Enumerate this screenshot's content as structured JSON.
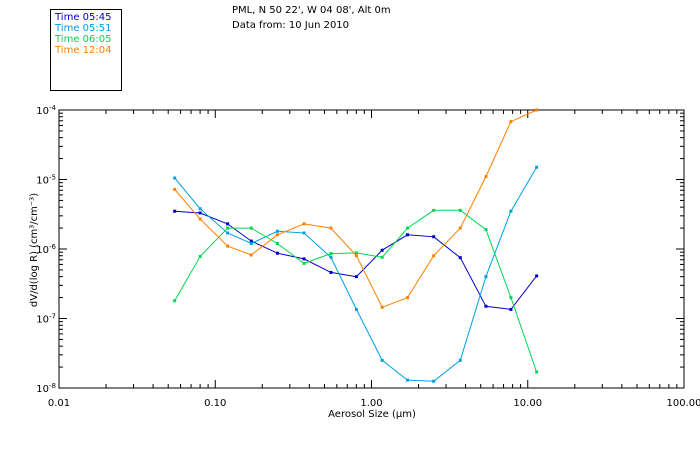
{
  "header": {
    "line1": "PML, N 50 22', W 04 08', Alt 0m",
    "line2": "Data from: 10 Jun 2010"
  },
  "chart_data": {
    "type": "line",
    "xlabel": "Aerosol Size (μm)",
    "ylabel": "dV/d(log R) (cm³/cm⁻³)",
    "xscale": "log",
    "yscale": "log",
    "xlim": [
      0.01,
      100
    ],
    "ylim": [
      1e-08,
      0.0001
    ],
    "xticks": [
      {
        "value": 0.01,
        "label": "0.01"
      },
      {
        "value": 0.1,
        "label": "0.10"
      },
      {
        "value": 1,
        "label": "1.00"
      },
      {
        "value": 10,
        "label": "10.00"
      },
      {
        "value": 100,
        "label": "100.00"
      }
    ],
    "yticks": [
      {
        "value": 1e-08,
        "base": "10",
        "exp": "-8"
      },
      {
        "value": 1e-07,
        "base": "10",
        "exp": "-7"
      },
      {
        "value": 1e-06,
        "base": "10",
        "exp": "-6"
      },
      {
        "value": 1e-05,
        "base": "10",
        "exp": "-5"
      },
      {
        "value": 0.0001,
        "base": "10",
        "exp": "-4"
      }
    ],
    "grid": false,
    "legend_position": "top-left",
    "x": [
      0.055,
      0.08,
      0.12,
      0.17,
      0.25,
      0.37,
      0.55,
      0.8,
      1.17,
      1.7,
      2.5,
      3.7,
      5.4,
      7.8,
      11.4
    ],
    "series": [
      {
        "name": "Time 05:45",
        "color": "#0000c8",
        "values": [
          3.5e-06,
          3.3e-06,
          2.3e-06,
          1.3e-06,
          8.7e-07,
          7.2e-07,
          4.6e-07,
          4e-07,
          9.6e-07,
          1.6e-06,
          1.5e-06,
          7.5e-07,
          1.5e-07,
          1.35e-07,
          4.1e-07
        ]
      },
      {
        "name": "Time 05:51",
        "color": "#00a0e0",
        "values": [
          1.05e-05,
          3.8e-06,
          1.7e-06,
          1.2e-06,
          1.8e-06,
          1.7e-06,
          7.6e-07,
          1.35e-07,
          2.5e-08,
          1.3e-08,
          1.25e-08,
          2.5e-08,
          4e-07,
          3.5e-06,
          1.5e-05
        ]
      },
      {
        "name": "Time 06:05",
        "color": "#00d850",
        "values": [
          1.8e-07,
          7.8e-07,
          2e-06,
          2e-06,
          1.2e-06,
          6.2e-07,
          8.6e-07,
          8.8e-07,
          7.6e-07,
          2e-06,
          3.6e-06,
          3.6e-06,
          1.9e-06,
          2e-07,
          1.7e-08
        ]
      },
      {
        "name": "Time 12:04",
        "color": "#ff8000",
        "values": [
          7.2e-06,
          2.7e-06,
          1.1e-06,
          8.2e-07,
          1.6e-06,
          2.3e-06,
          2e-06,
          8e-07,
          1.45e-07,
          2e-07,
          8e-07,
          2e-06,
          1.1e-05,
          6.8e-05,
          0.0001
        ]
      }
    ]
  }
}
